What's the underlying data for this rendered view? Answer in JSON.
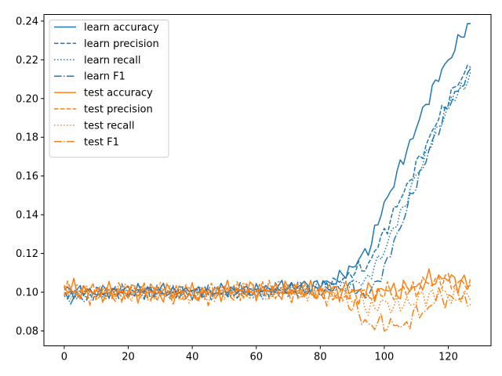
{
  "chart_data": {
    "type": "line",
    "xlim": [
      -6.35,
      133.35
    ],
    "ylim": [
      0.0723,
      0.2434
    ],
    "xticks": [
      0,
      20,
      40,
      60,
      80,
      100,
      120
    ],
    "yticks": [
      0.08,
      0.1,
      0.12,
      0.14,
      0.16,
      0.18,
      0.2,
      0.22,
      0.24
    ],
    "ytick_labels": [
      "0.08",
      "0.10",
      "0.12",
      "0.14",
      "0.16",
      "0.18",
      "0.20",
      "0.22",
      "0.24"
    ],
    "grid": false,
    "legend_position": "upper-left",
    "series_points": 128,
    "series": [
      {
        "name": "learn accuracy",
        "color": "#1f77b4",
        "dash": "solid",
        "keypoints": [
          [
            0,
            0.101
          ],
          [
            10,
            0.1
          ],
          [
            20,
            0.101
          ],
          [
            30,
            0.101
          ],
          [
            40,
            0.1
          ],
          [
            50,
            0.101
          ],
          [
            60,
            0.101
          ],
          [
            70,
            0.103
          ],
          [
            80,
            0.104
          ],
          [
            85,
            0.106
          ],
          [
            90,
            0.113
          ],
          [
            95,
            0.122
          ],
          [
            100,
            0.145
          ],
          [
            105,
            0.165
          ],
          [
            110,
            0.185
          ],
          [
            115,
            0.205
          ],
          [
            120,
            0.22
          ],
          [
            124,
            0.232
          ],
          [
            127,
            0.239
          ]
        ]
      },
      {
        "name": "learn precision",
        "color": "#1f77b4",
        "dash": "dashed",
        "keypoints": [
          [
            0,
            0.1
          ],
          [
            10,
            0.1
          ],
          [
            20,
            0.1
          ],
          [
            30,
            0.1
          ],
          [
            40,
            0.1
          ],
          [
            50,
            0.1
          ],
          [
            60,
            0.101
          ],
          [
            70,
            0.102
          ],
          [
            80,
            0.103
          ],
          [
            85,
            0.105
          ],
          [
            90,
            0.11
          ],
          [
            95,
            0.114
          ],
          [
            100,
            0.131
          ],
          [
            105,
            0.148
          ],
          [
            110,
            0.165
          ],
          [
            115,
            0.183
          ],
          [
            120,
            0.2
          ],
          [
            124,
            0.21
          ],
          [
            127,
            0.219
          ]
        ]
      },
      {
        "name": "learn recall",
        "color": "#1f77b4",
        "dash": "dotted",
        "keypoints": [
          [
            0,
            0.099
          ],
          [
            10,
            0.099
          ],
          [
            20,
            0.1
          ],
          [
            30,
            0.1
          ],
          [
            40,
            0.1
          ],
          [
            50,
            0.1
          ],
          [
            60,
            0.1
          ],
          [
            70,
            0.101
          ],
          [
            80,
            0.102
          ],
          [
            85,
            0.103
          ],
          [
            90,
            0.104
          ],
          [
            95,
            0.107
          ],
          [
            100,
            0.122
          ],
          [
            105,
            0.14
          ],
          [
            110,
            0.16
          ],
          [
            115,
            0.178
          ],
          [
            120,
            0.196
          ],
          [
            124,
            0.205
          ],
          [
            127,
            0.212
          ]
        ]
      },
      {
        "name": "learn F1",
        "color": "#1f77b4",
        "dash": "dashdot",
        "keypoints": [
          [
            0,
            0.098
          ],
          [
            2,
            0.096
          ],
          [
            10,
            0.099
          ],
          [
            20,
            0.1
          ],
          [
            30,
            0.1
          ],
          [
            40,
            0.1
          ],
          [
            50,
            0.1
          ],
          [
            60,
            0.1
          ],
          [
            70,
            0.101
          ],
          [
            80,
            0.101
          ],
          [
            85,
            0.102
          ],
          [
            90,
            0.103
          ],
          [
            95,
            0.098
          ],
          [
            100,
            0.112
          ],
          [
            105,
            0.134
          ],
          [
            110,
            0.156
          ],
          [
            115,
            0.177
          ],
          [
            120,
            0.196
          ],
          [
            124,
            0.207
          ],
          [
            127,
            0.213
          ]
        ]
      },
      {
        "name": "test accuracy",
        "color": "#ff7f0e",
        "dash": "solid",
        "keypoints": [
          [
            0,
            0.102
          ],
          [
            10,
            0.1
          ],
          [
            20,
            0.1
          ],
          [
            30,
            0.1
          ],
          [
            40,
            0.099
          ],
          [
            50,
            0.101
          ],
          [
            60,
            0.101
          ],
          [
            70,
            0.101
          ],
          [
            80,
            0.1
          ],
          [
            85,
            0.101
          ],
          [
            90,
            0.101
          ],
          [
            95,
            0.1
          ],
          [
            100,
            0.101
          ],
          [
            105,
            0.101
          ],
          [
            110,
            0.103
          ],
          [
            115,
            0.107
          ],
          [
            120,
            0.107
          ],
          [
            124,
            0.105
          ],
          [
            127,
            0.104
          ]
        ]
      },
      {
        "name": "test precision",
        "color": "#ff7f0e",
        "dash": "dashed",
        "keypoints": [
          [
            0,
            0.101
          ],
          [
            10,
            0.1
          ],
          [
            20,
            0.1
          ],
          [
            30,
            0.1
          ],
          [
            40,
            0.099
          ],
          [
            50,
            0.101
          ],
          [
            60,
            0.101
          ],
          [
            70,
            0.101
          ],
          [
            80,
            0.1
          ],
          [
            85,
            0.1
          ],
          [
            90,
            0.099
          ],
          [
            95,
            0.098
          ],
          [
            100,
            0.1
          ],
          [
            105,
            0.1
          ],
          [
            110,
            0.102
          ],
          [
            115,
            0.106
          ],
          [
            120,
            0.106
          ],
          [
            124,
            0.104
          ],
          [
            127,
            0.104
          ]
        ]
      },
      {
        "name": "test recall",
        "color": "#ff7f0e",
        "dash": "dotted",
        "keypoints": [
          [
            0,
            0.101
          ],
          [
            10,
            0.1
          ],
          [
            20,
            0.1
          ],
          [
            30,
            0.1
          ],
          [
            40,
            0.099
          ],
          [
            50,
            0.1
          ],
          [
            60,
            0.101
          ],
          [
            70,
            0.101
          ],
          [
            80,
            0.1
          ],
          [
            85,
            0.1
          ],
          [
            90,
            0.097
          ],
          [
            95,
            0.092
          ],
          [
            100,
            0.094
          ],
          [
            105,
            0.093
          ],
          [
            110,
            0.096
          ],
          [
            115,
            0.099
          ],
          [
            120,
            0.099
          ],
          [
            124,
            0.098
          ],
          [
            127,
            0.098
          ]
        ]
      },
      {
        "name": "test F1",
        "color": "#ff7f0e",
        "dash": "dashdot",
        "keypoints": [
          [
            0,
            0.101
          ],
          [
            10,
            0.099
          ],
          [
            20,
            0.1
          ],
          [
            30,
            0.099
          ],
          [
            40,
            0.098
          ],
          [
            50,
            0.1
          ],
          [
            60,
            0.1
          ],
          [
            70,
            0.1
          ],
          [
            80,
            0.099
          ],
          [
            85,
            0.098
          ],
          [
            90,
            0.094
          ],
          [
            93,
            0.086
          ],
          [
            96,
            0.083
          ],
          [
            100,
            0.084
          ],
          [
            104,
            0.083
          ],
          [
            106,
            0.081
          ],
          [
            108,
            0.087
          ],
          [
            110,
            0.089
          ],
          [
            113,
            0.09
          ],
          [
            116,
            0.097
          ],
          [
            120,
            0.097
          ],
          [
            124,
            0.096
          ],
          [
            127,
            0.097
          ]
        ]
      }
    ]
  }
}
